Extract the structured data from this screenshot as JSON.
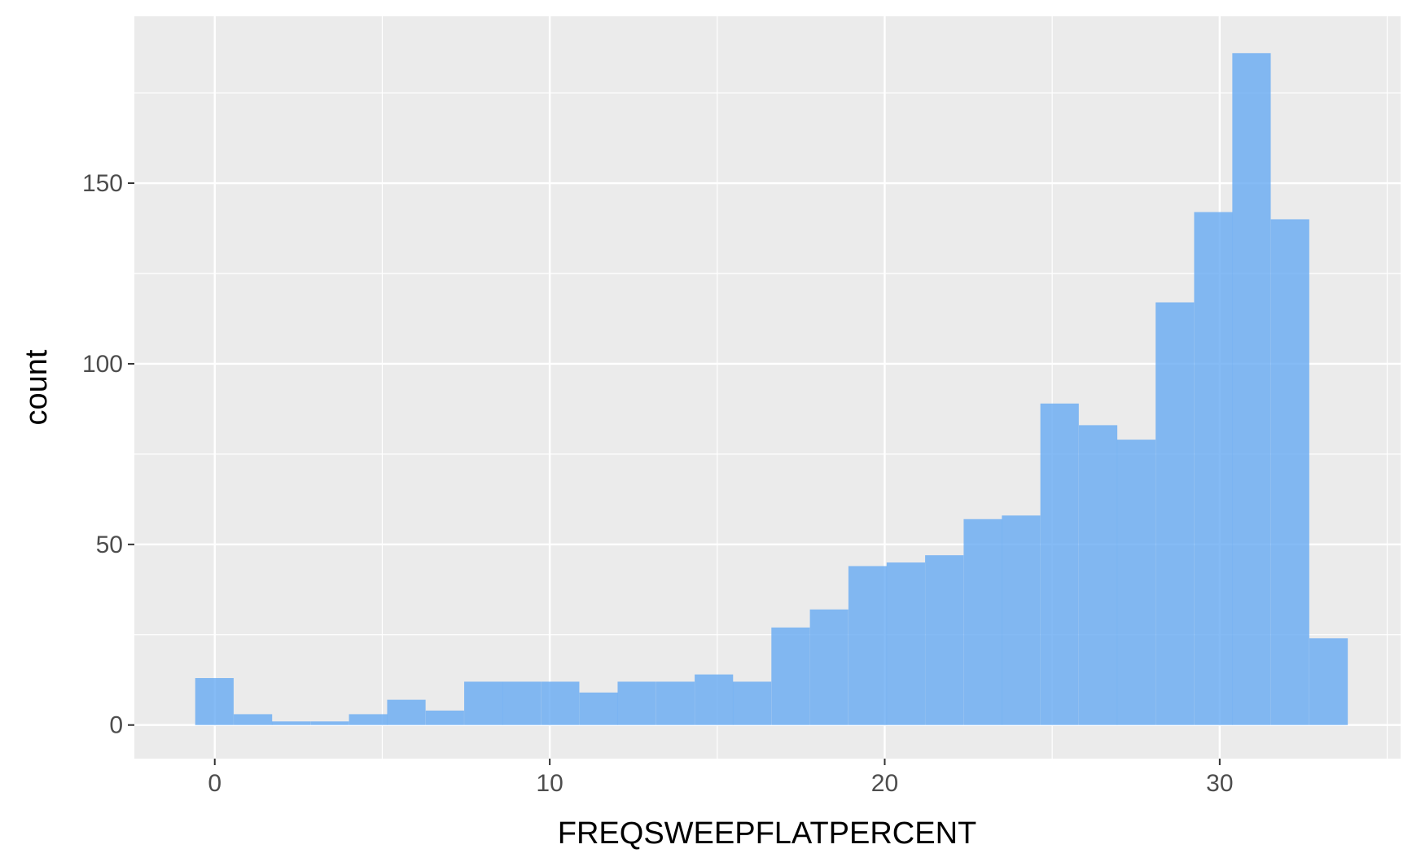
{
  "chart_data": {
    "type": "bar",
    "subtype": "histogram",
    "title": "",
    "xlabel": "FREQSWEEPFLATPERCENT",
    "ylabel": "count",
    "xlim": [
      -2.4,
      35.4
    ],
    "ylim": [
      -9.3,
      196.2
    ],
    "x_ticks": [
      0,
      10,
      20,
      30
    ],
    "y_ticks": [
      0,
      50,
      100,
      150
    ],
    "bin_width": 1.147,
    "bin_centers": [
      -0.01,
      1.14,
      2.28,
      3.43,
      4.58,
      5.72,
      6.87,
      8.02,
      9.16,
      10.31,
      11.46,
      12.6,
      13.75,
      14.9,
      16.04,
      17.19,
      18.34,
      19.49,
      20.63,
      21.78,
      22.93,
      24.07,
      25.22,
      26.37,
      27.51,
      28.66,
      29.81,
      30.95,
      32.1,
      33.25
    ],
    "counts": [
      13,
      3,
      1,
      1,
      3,
      7,
      4,
      12,
      12,
      12,
      9,
      12,
      12,
      14,
      12,
      27,
      32,
      44,
      45,
      47,
      57,
      58,
      89,
      83,
      79,
      117,
      142,
      186,
      140,
      24
    ],
    "fill_color": "#66AAF2",
    "fill_opacity": 0.8,
    "panel_background": "#EBEBEB",
    "grid": true,
    "grid_color": "#FFFFFF",
    "legend": "none"
  }
}
